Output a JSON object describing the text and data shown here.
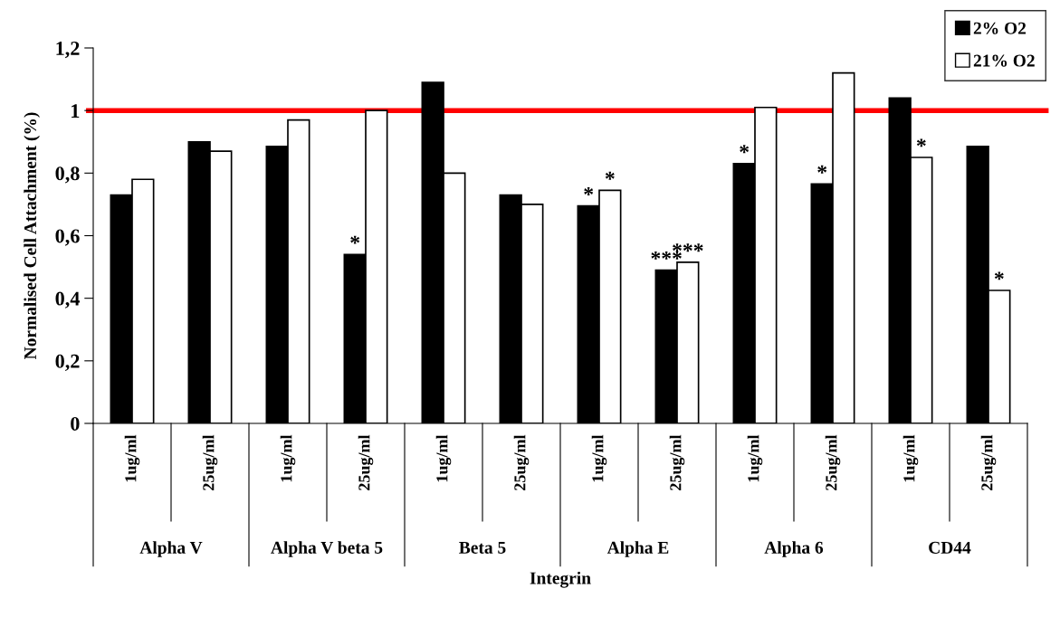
{
  "chart_data": {
    "type": "bar",
    "categories": [
      "1ug/ml",
      "25ug/ml",
      "1ug/ml",
      "25ug/ml",
      "1ug/ml",
      "25ug/ml",
      "1ug/ml",
      "25ug/ml",
      "1ug/ml",
      "25ug/ml",
      "1ug/ml",
      "25ug/ml"
    ],
    "series": [
      {
        "name": "2% O2",
        "color": "#000000",
        "values": [
          0.73,
          0.9,
          0.885,
          0.54,
          1.09,
          0.73,
          0.695,
          0.49,
          0.83,
          0.765,
          1.04,
          0.885
        ],
        "value_labels": [
          null,
          null,
          null,
          "*",
          null,
          null,
          "*",
          "***",
          "*",
          "*",
          null,
          null
        ]
      },
      {
        "name": "21% O2",
        "color": "#ffffff",
        "values": [
          0.78,
          0.87,
          0.97,
          1.0,
          0.8,
          0.7,
          0.745,
          0.515,
          1.01,
          1.12,
          0.85,
          0.425
        ],
        "value_labels": [
          null,
          null,
          null,
          null,
          null,
          null,
          "*",
          "***",
          null,
          null,
          "*",
          "*"
        ]
      }
    ],
    "annotations": [
      "Alpha V",
      "Alpha V beta 5",
      "Beta 5",
      "Alpha E",
      "Alpha 6",
      "CD44"
    ],
    "xlabel": "Integrin",
    "ylabel": "Normalised Cell Attachment (%)",
    "ylim": [
      0,
      1.2
    ],
    "yticks": [
      {
        "value": 0,
        "label": "0"
      },
      {
        "value": 0.2,
        "label": "0,2"
      },
      {
        "value": 0.4,
        "label": "0,4"
      },
      {
        "value": 0.6,
        "label": "0,6"
      },
      {
        "value": 0.8,
        "label": "0,8"
      },
      {
        "value": 1,
        "label": "1"
      },
      {
        "value": 1.2,
        "label": "1,2"
      }
    ],
    "ref_lines": [
      {
        "axis": "y",
        "value": 1,
        "color": "#ff0000"
      }
    ],
    "legend": "top right",
    "grid": false
  }
}
